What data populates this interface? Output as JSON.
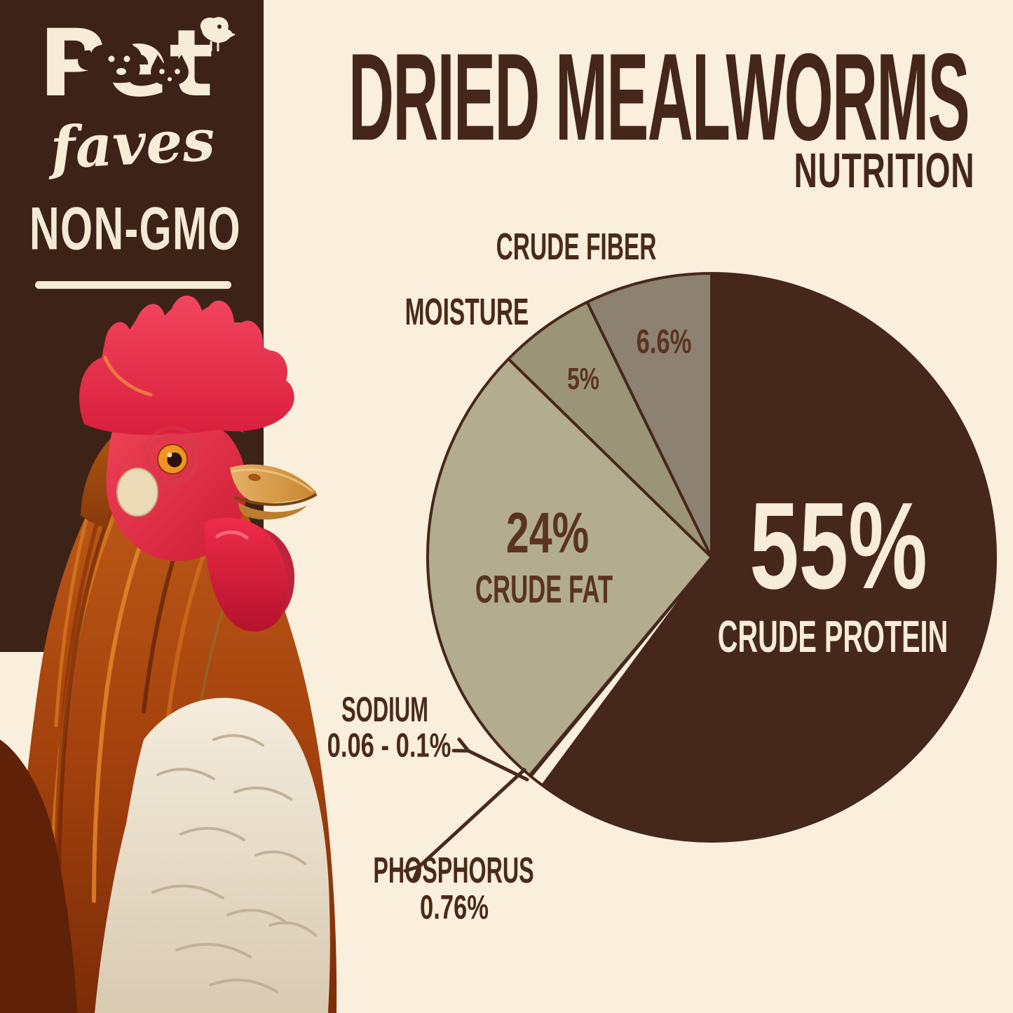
{
  "brand": {
    "logo_text": "Pet",
    "logo_script": "faves",
    "badge": "NON-GMO",
    "icons": [
      "dog-face-icon",
      "cat-face-icon",
      "bird-icon"
    ]
  },
  "header": {
    "title": "DRIED MEALWORMS",
    "subtitle": "NUTRITION"
  },
  "chart_data": {
    "type": "pie",
    "title": "Dried Mealworms Nutrition",
    "start_angle_deg": 0,
    "direction": "clockwise",
    "note": "slice angles are values normalized to a full 360 degrees",
    "series": [
      {
        "name": "CRUDE PROTEIN",
        "value": 55,
        "pct_label": "55%",
        "color": "#45281B"
      },
      {
        "name": "PHOSPHORUS",
        "value": 0.76,
        "pct_label": "0.76%",
        "color": "#F9EFDC"
      },
      {
        "name": "SODIUM",
        "value": 0.08,
        "pct_label": "0.06 - 0.1%",
        "color": "#F9EFDC"
      },
      {
        "name": "CRUDE FAT",
        "value": 24,
        "pct_label": "24%",
        "color": "#B3AC8F"
      },
      {
        "name": "MOISTURE",
        "value": 5,
        "pct_label": "5%",
        "color": "#9C9477"
      },
      {
        "name": "CRUDE FIBER",
        "value": 6.6,
        "pct_label": "6.6%",
        "color": "#8D8171"
      }
    ]
  },
  "colors": {
    "background_cream": "#F9EFDC",
    "panel_brown": "#3D2217",
    "title_brown": "#44271A",
    "outline": "#45281B",
    "arrow": "#4A2A1C",
    "label_on_slice": "#5A3321",
    "label_outer": "#4B2A1A",
    "cream_text": "#F6ECD8"
  }
}
